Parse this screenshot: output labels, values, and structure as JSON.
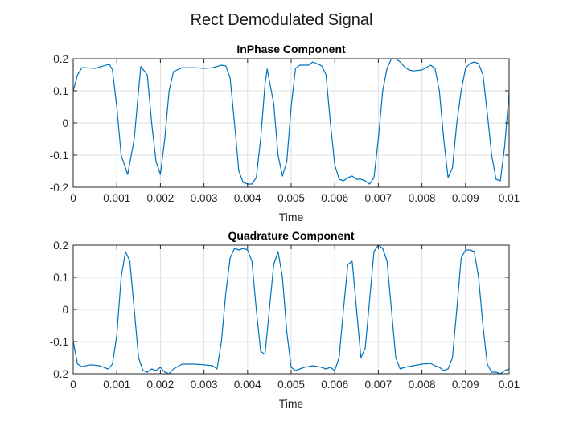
{
  "figure": {
    "title": "Rect Demodulated Signal"
  },
  "colors": {
    "series": "#0072bd"
  },
  "chart_data": [
    {
      "type": "line",
      "title": "InPhase Component",
      "xlabel": "Time",
      "ylabel": "",
      "xlim": [
        0,
        0.01
      ],
      "ylim": [
        -0.2,
        0.2
      ],
      "xticks": [
        0,
        0.001,
        0.002,
        0.003,
        0.004,
        0.005,
        0.006,
        0.007,
        0.008,
        0.009,
        0.01
      ],
      "xticklabels": [
        "0",
        "0.001",
        "0.002",
        "0.003",
        "0.004",
        "0.005",
        "0.006",
        "0.007",
        "0.008",
        "0.009",
        "0.01"
      ],
      "yticks": [
        0.2,
        0.1,
        0,
        -0.1,
        -0.2
      ],
      "yticklabels": [
        "0.2",
        "0.1",
        "0",
        "-0.1",
        "-0.2"
      ],
      "grid": true,
      "series": [
        {
          "x": [
            0,
            0.0001,
            0.0002,
            0.0003,
            0.0005,
            0.0007,
            0.00083,
            0.0009,
            0.001,
            0.0011,
            0.00125,
            0.0014,
            0.00155,
            0.0017,
            0.0018,
            0.0019,
            0.002,
            0.0021,
            0.0022,
            0.0023,
            0.0025,
            0.0028,
            0.003,
            0.0032,
            0.0034,
            0.0035,
            0.0036,
            0.0037,
            0.0038,
            0.0039,
            0.004,
            0.0041,
            0.0042,
            0.0043,
            0.0044,
            0.00445,
            0.0046,
            0.0047,
            0.0048,
            0.0049,
            0.005,
            0.0051,
            0.0052,
            0.0053,
            0.0054,
            0.0055,
            0.0057,
            0.0058,
            0.0059,
            0.006,
            0.0061,
            0.0062,
            0.0063,
            0.0064,
            0.0065,
            0.0066,
            0.0067,
            0.0068,
            0.0069,
            0.007,
            0.0071,
            0.0072,
            0.0073,
            0.0074,
            0.0075,
            0.0076,
            0.0077,
            0.0078,
            0.008,
            0.0082,
            0.0083,
            0.0084,
            0.0085,
            0.0086,
            0.0087,
            0.0088,
            0.0089,
            0.009,
            0.0091,
            0.0092,
            0.0093,
            0.0094,
            0.0095,
            0.0096,
            0.0097,
            0.0098,
            0.0099,
            0.01
          ],
          "y": [
            0.1,
            0.15,
            0.172,
            0.172,
            0.17,
            0.178,
            0.183,
            0.165,
            0.05,
            -0.1,
            -0.16,
            -0.05,
            0.176,
            0.15,
            0.0,
            -0.12,
            -0.16,
            -0.05,
            0.1,
            0.16,
            0.172,
            0.172,
            0.17,
            0.172,
            0.18,
            0.178,
            0.14,
            0.0,
            -0.15,
            -0.185,
            -0.19,
            -0.19,
            -0.17,
            -0.05,
            0.12,
            0.168,
            0.06,
            -0.1,
            -0.165,
            -0.12,
            0.05,
            0.17,
            0.18,
            0.18,
            0.18,
            0.19,
            0.178,
            0.15,
            0.0,
            -0.13,
            -0.175,
            -0.18,
            -0.17,
            -0.165,
            -0.175,
            -0.175,
            -0.18,
            -0.19,
            -0.17,
            -0.05,
            0.1,
            0.17,
            0.2,
            0.2,
            0.19,
            0.175,
            0.165,
            0.162,
            0.165,
            0.18,
            0.17,
            0.1,
            -0.05,
            -0.17,
            -0.14,
            0.0,
            0.1,
            0.17,
            0.185,
            0.19,
            0.185,
            0.15,
            0.03,
            -0.1,
            -0.175,
            -0.18,
            -0.07,
            0.095
          ]
        }
      ]
    },
    {
      "type": "line",
      "title": "Quadrature Component",
      "xlabel": "Time",
      "ylabel": "",
      "xlim": [
        0,
        0.01
      ],
      "ylim": [
        -0.2,
        0.2
      ],
      "xticks": [
        0,
        0.001,
        0.002,
        0.003,
        0.004,
        0.005,
        0.006,
        0.007,
        0.008,
        0.009,
        0.01
      ],
      "xticklabels": [
        "0",
        "0.001",
        "0.002",
        "0.003",
        "0.004",
        "0.005",
        "0.006",
        "0.007",
        "0.008",
        "0.009",
        "0.01"
      ],
      "yticks": [
        0.2,
        0.1,
        0,
        -0.1,
        -0.2
      ],
      "yticklabels": [
        "0.2",
        "0.1",
        "0",
        "-0.1",
        "-0.2"
      ],
      "grid": true,
      "series": [
        {
          "x": [
            0,
            0.0001,
            0.0002,
            0.0004,
            0.0006,
            0.0008,
            0.0009,
            0.001,
            0.0011,
            0.0012,
            0.0013,
            0.0014,
            0.0015,
            0.0016,
            0.0017,
            0.0018,
            0.0019,
            0.002,
            0.0021,
            0.0022,
            0.0023,
            0.0025,
            0.0028,
            0.003,
            0.0032,
            0.0033,
            0.0034,
            0.0035,
            0.0036,
            0.0037,
            0.0038,
            0.0039,
            0.004,
            0.0041,
            0.0042,
            0.0043,
            0.0044,
            0.0045,
            0.0046,
            0.0047,
            0.0048,
            0.0049,
            0.005,
            0.0051,
            0.0052,
            0.0053,
            0.0055,
            0.0057,
            0.0058,
            0.0059,
            0.006,
            0.0061,
            0.0062,
            0.0063,
            0.0064,
            0.0065,
            0.0066,
            0.0067,
            0.0068,
            0.0069,
            0.007,
            0.0071,
            0.0072,
            0.0073,
            0.0074,
            0.0075,
            0.0076,
            0.0078,
            0.008,
            0.0082,
            0.0083,
            0.0084,
            0.0085,
            0.0086,
            0.0087,
            0.0088,
            0.0089,
            0.009,
            0.0091,
            0.0092,
            0.0093,
            0.0094,
            0.0095,
            0.0096,
            0.0097,
            0.0098,
            0.0099,
            0.01
          ],
          "y": [
            -0.1,
            -0.17,
            -0.178,
            -0.172,
            -0.175,
            -0.185,
            -0.17,
            -0.08,
            0.1,
            0.18,
            0.15,
            0.0,
            -0.15,
            -0.19,
            -0.195,
            -0.185,
            -0.19,
            -0.18,
            -0.195,
            -0.2,
            -0.185,
            -0.17,
            -0.17,
            -0.172,
            -0.175,
            -0.185,
            -0.1,
            0.05,
            0.16,
            0.19,
            0.185,
            0.19,
            0.185,
            0.15,
            0.0,
            -0.13,
            -0.14,
            0.0,
            0.14,
            0.18,
            0.1,
            -0.07,
            -0.18,
            -0.19,
            -0.185,
            -0.18,
            -0.175,
            -0.18,
            -0.185,
            -0.18,
            -0.19,
            -0.15,
            0.0,
            0.14,
            0.15,
            0.0,
            -0.15,
            -0.12,
            0.03,
            0.18,
            0.2,
            0.19,
            0.15,
            0.0,
            -0.15,
            -0.185,
            -0.18,
            -0.175,
            -0.17,
            -0.168,
            -0.175,
            -0.18,
            -0.19,
            -0.185,
            -0.15,
            0.0,
            0.16,
            0.185,
            0.185,
            0.18,
            0.1,
            -0.05,
            -0.17,
            -0.195,
            -0.195,
            -0.2,
            -0.19,
            -0.185
          ]
        }
      ]
    }
  ]
}
